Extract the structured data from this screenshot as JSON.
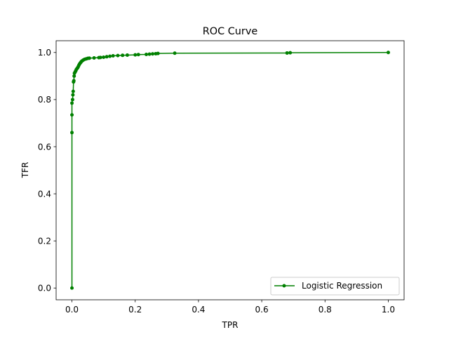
{
  "chart_data": {
    "type": "line",
    "title": "ROC Curve",
    "xlabel": "TPR",
    "ylabel": "TFR",
    "xlim": [
      -0.05,
      1.05
    ],
    "ylim": [
      -0.05,
      1.05
    ],
    "xticks": [
      0.0,
      0.2,
      0.4,
      0.6,
      0.8,
      1.0
    ],
    "xtick_labels": [
      "0.0",
      "0.2",
      "0.4",
      "0.6",
      "0.8",
      "1.0"
    ],
    "yticks": [
      0.0,
      0.2,
      0.4,
      0.6,
      0.8,
      1.0
    ],
    "ytick_labels": [
      "0.0",
      "0.2",
      "0.4",
      "0.6",
      "0.8",
      "1.0"
    ],
    "grid": false,
    "legend_position": "lower-right",
    "series": [
      {
        "name": "Logistic Regression",
        "color": "#008000",
        "marker": "circle",
        "x": [
          0.0,
          0.0,
          0.0,
          0.0,
          0.002,
          0.003,
          0.004,
          0.005,
          0.006,
          0.007,
          0.008,
          0.01,
          0.012,
          0.014,
          0.016,
          0.018,
          0.02,
          0.022,
          0.024,
          0.026,
          0.028,
          0.03,
          0.033,
          0.036,
          0.04,
          0.045,
          0.05,
          0.055,
          0.07,
          0.085,
          0.09,
          0.1,
          0.11,
          0.12,
          0.13,
          0.145,
          0.16,
          0.175,
          0.2,
          0.21,
          0.235,
          0.245,
          0.255,
          0.265,
          0.272,
          0.325,
          0.68,
          0.69,
          1.0
        ],
        "y": [
          0.0,
          0.66,
          0.735,
          0.785,
          0.8,
          0.82,
          0.835,
          0.875,
          0.88,
          0.9,
          0.912,
          0.917,
          0.922,
          0.928,
          0.932,
          0.935,
          0.94,
          0.946,
          0.951,
          0.955,
          0.958,
          0.962,
          0.965,
          0.968,
          0.971,
          0.973,
          0.975,
          0.976,
          0.977,
          0.978,
          0.979,
          0.98,
          0.982,
          0.984,
          0.986,
          0.987,
          0.988,
          0.989,
          0.99,
          0.991,
          0.992,
          0.993,
          0.994,
          0.995,
          0.996,
          0.997,
          0.998,
          0.999,
          1.0
        ]
      }
    ]
  }
}
